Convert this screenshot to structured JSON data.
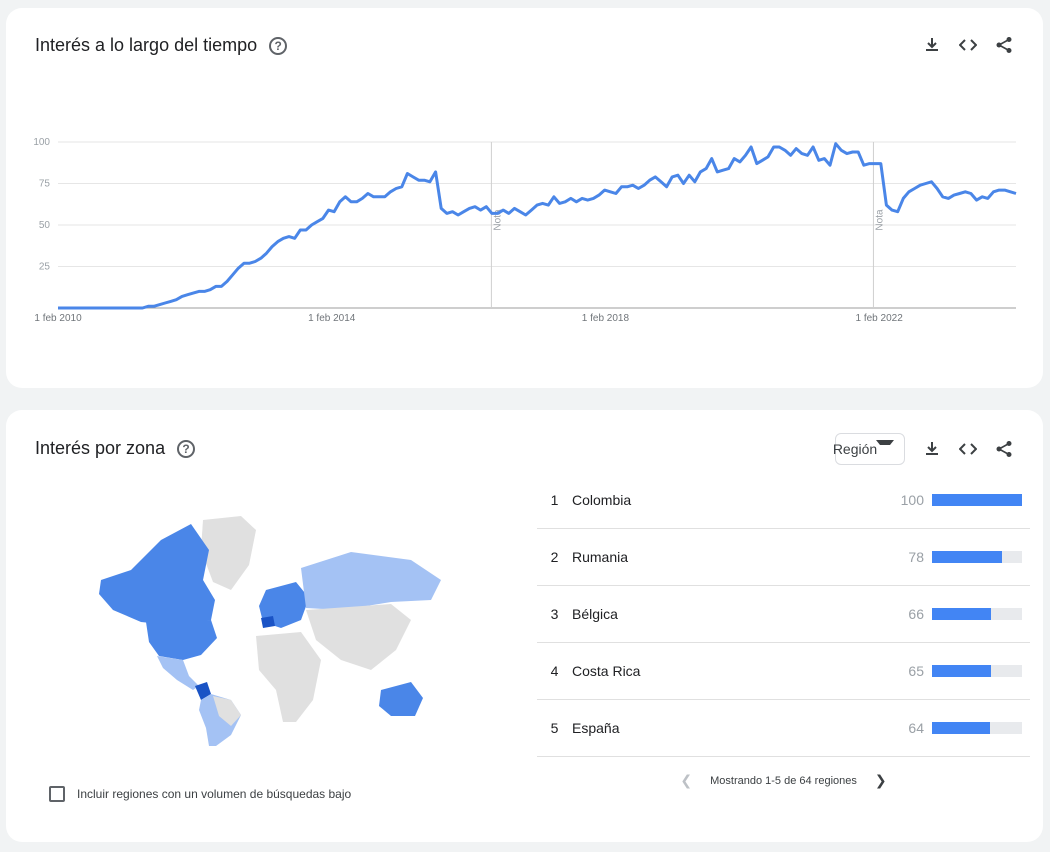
{
  "time_card": {
    "title": "Interés a lo largo del tiempo",
    "help_icon": "help-circle-icon",
    "actions": [
      "download-icon",
      "embed-code-icon",
      "share-icon"
    ]
  },
  "chart_data": {
    "type": "line",
    "title": "Interés a lo largo del tiempo",
    "ylim": [
      0,
      100
    ],
    "y_ticks": [
      25,
      50,
      75,
      100
    ],
    "x_ticks": [
      "1 feb 2010",
      "1 feb 2014",
      "1 feb 2018",
      "1 feb 2022"
    ],
    "grid": true,
    "color": "#4a86e8",
    "annotations": [
      {
        "label": "Nota",
        "x": "2016-06"
      },
      {
        "label": "Nota",
        "x": "2022-01"
      }
    ],
    "series": [
      {
        "values": [
          0,
          0,
          0,
          0,
          0,
          0,
          0,
          0,
          0,
          0,
          0,
          0,
          0,
          0,
          0,
          0,
          1,
          1,
          2,
          3,
          4,
          5,
          7,
          8,
          9,
          10,
          10,
          11,
          13,
          13,
          16,
          20,
          24,
          27,
          27,
          28,
          30,
          33,
          37,
          40,
          42,
          43,
          42,
          47,
          47,
          50,
          52,
          54,
          59,
          58,
          64,
          67,
          64,
          64,
          66,
          69,
          67,
          67,
          67,
          70,
          72,
          73,
          81,
          79,
          77,
          77,
          76,
          82,
          60,
          57,
          58,
          56,
          58,
          60,
          61,
          59,
          61,
          57,
          57,
          59,
          57,
          60,
          58,
          56,
          59,
          62,
          63,
          62,
          67,
          63,
          64,
          66,
          64,
          66,
          65,
          66,
          68,
          71,
          70,
          69,
          73,
          73,
          74,
          72,
          74,
          77,
          79,
          76,
          73,
          79,
          80,
          75,
          80,
          76,
          82,
          84,
          90,
          82,
          83,
          84,
          90,
          88,
          92,
          97,
          87,
          89,
          91,
          97,
          97,
          95,
          92,
          96,
          93,
          92,
          97,
          89,
          90,
          86,
          99,
          95,
          93,
          94,
          94,
          86,
          87,
          87,
          87,
          62,
          59,
          58,
          66,
          70,
          72,
          74,
          75,
          76,
          72,
          67,
          66,
          68,
          69,
          70,
          69,
          65,
          67,
          66,
          70,
          71,
          71,
          70,
          69
        ]
      }
    ],
    "x_start": "2010-02",
    "x_end": "2024-02"
  },
  "zone_card": {
    "title": "Interés por zona",
    "help_icon": "help-circle-icon",
    "dropdown_label": "Región",
    "actions": [
      "download-icon",
      "embed-code-icon",
      "share-icon"
    ],
    "regions": [
      {
        "rank": "1",
        "name": "Colombia",
        "value": "100",
        "fraction": 1.0
      },
      {
        "rank": "2",
        "name": "Rumania",
        "value": "78",
        "fraction": 0.78
      },
      {
        "rank": "3",
        "name": "Bélgica",
        "value": "66",
        "fraction": 0.66
      },
      {
        "rank": "4",
        "name": "Costa Rica",
        "value": "65",
        "fraction": 0.65
      },
      {
        "rank": "5",
        "name": "España",
        "value": "64",
        "fraction": 0.64
      }
    ],
    "pager_text": "Mostrando 1-5 de 64 regiones",
    "low_volume_label": "Incluir regiones con un volumen de búsquedas bajo",
    "map_colors": {
      "dark": "#1a53c5",
      "mid": "#4a86e8",
      "light": "#a4c2f4",
      "none": "#e0e0e0"
    }
  }
}
